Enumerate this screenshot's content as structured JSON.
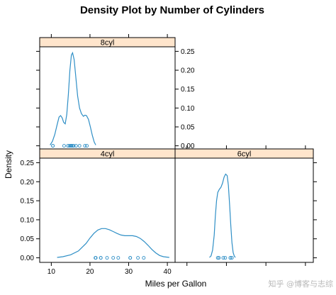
{
  "chart_data": {
    "type": "density",
    "title": "Density Plot by Number of Cylinders",
    "xlabel": "Miles per Gallon",
    "ylabel": "Density",
    "xlim": [
      7,
      42
    ],
    "ylim": [
      -0.012,
      0.262
    ],
    "x_ticks": [
      10,
      20,
      30,
      40
    ],
    "x_tick_labels": [
      "10",
      "20",
      "30",
      "40"
    ],
    "y_ticks": [
      0.0,
      0.05,
      0.1,
      0.15,
      0.2,
      0.25
    ],
    "y_tick_labels": [
      "0.00",
      "0.05",
      "0.10",
      "0.15",
      "0.20",
      "0.25"
    ],
    "layout": "lattice 2x2: 8cyl top-left, 4cyl bottom-left, 6cyl bottom-right",
    "line_color": "#2f8fc6",
    "strip_color": "#ffe5cc",
    "panels": [
      {
        "name": "8cyl",
        "curve": [
          [
            9.7,
            0.002
          ],
          [
            10.3,
            0.012
          ],
          [
            10.9,
            0.03
          ],
          [
            11.5,
            0.056
          ],
          [
            12.0,
            0.076
          ],
          [
            12.4,
            0.08
          ],
          [
            12.8,
            0.074
          ],
          [
            13.2,
            0.062
          ],
          [
            13.6,
            0.058
          ],
          [
            14.0,
            0.083
          ],
          [
            14.4,
            0.135
          ],
          [
            14.8,
            0.2
          ],
          [
            15.2,
            0.24
          ],
          [
            15.5,
            0.246
          ],
          [
            15.9,
            0.228
          ],
          [
            16.3,
            0.185
          ],
          [
            16.8,
            0.132
          ],
          [
            17.3,
            0.1
          ],
          [
            17.8,
            0.085
          ],
          [
            18.3,
            0.078
          ],
          [
            18.7,
            0.081
          ],
          [
            19.1,
            0.08
          ],
          [
            19.6,
            0.07
          ],
          [
            20.1,
            0.05
          ],
          [
            20.6,
            0.028
          ],
          [
            21.1,
            0.01
          ],
          [
            21.5,
            0.002
          ]
        ],
        "rug": [
          10.4,
          10.4,
          13.3,
          14.3,
          14.7,
          15.0,
          15.2,
          15.2,
          15.5,
          15.8,
          16.4,
          17.3,
          18.7,
          19.2
        ]
      },
      {
        "name": "4cyl",
        "curve": [
          [
            11.5,
            0.001
          ],
          [
            13.0,
            0.003
          ],
          [
            15.0,
            0.008
          ],
          [
            17.0,
            0.018
          ],
          [
            19.0,
            0.038
          ],
          [
            20.0,
            0.052
          ],
          [
            21.0,
            0.064
          ],
          [
            22.0,
            0.073
          ],
          [
            23.0,
            0.077
          ],
          [
            24.0,
            0.077
          ],
          [
            25.0,
            0.074
          ],
          [
            26.0,
            0.069
          ],
          [
            27.0,
            0.064
          ],
          [
            28.0,
            0.06
          ],
          [
            29.0,
            0.058
          ],
          [
            30.0,
            0.058
          ],
          [
            31.0,
            0.058
          ],
          [
            32.0,
            0.056
          ],
          [
            33.0,
            0.051
          ],
          [
            34.0,
            0.043
          ],
          [
            35.0,
            0.033
          ],
          [
            36.0,
            0.022
          ],
          [
            37.0,
            0.013
          ],
          [
            38.0,
            0.006
          ],
          [
            39.0,
            0.003
          ],
          [
            40.5,
            0.001
          ]
        ],
        "rug": [
          21.4,
          21.5,
          22.8,
          22.8,
          24.4,
          26.0,
          27.3,
          30.4,
          30.4,
          32.4,
          33.9
        ]
      },
      {
        "name": "6cyl",
        "curve": [
          [
            15.7,
            0.001
          ],
          [
            16.1,
            0.005
          ],
          [
            16.5,
            0.02
          ],
          [
            16.9,
            0.06
          ],
          [
            17.2,
            0.11
          ],
          [
            17.5,
            0.15
          ],
          [
            17.8,
            0.172
          ],
          [
            18.2,
            0.18
          ],
          [
            18.6,
            0.185
          ],
          [
            19.0,
            0.196
          ],
          [
            19.4,
            0.212
          ],
          [
            19.8,
            0.22
          ],
          [
            20.2,
            0.216
          ],
          [
            20.5,
            0.19
          ],
          [
            20.8,
            0.14
          ],
          [
            21.1,
            0.085
          ],
          [
            21.4,
            0.04
          ],
          [
            21.7,
            0.014
          ],
          [
            22.0,
            0.004
          ],
          [
            22.3,
            0.001
          ]
        ],
        "rug": [
          17.8,
          18.1,
          19.2,
          19.7,
          21.0,
          21.0,
          21.4
        ]
      }
    ]
  },
  "watermark": "知乎 @博客与志综"
}
